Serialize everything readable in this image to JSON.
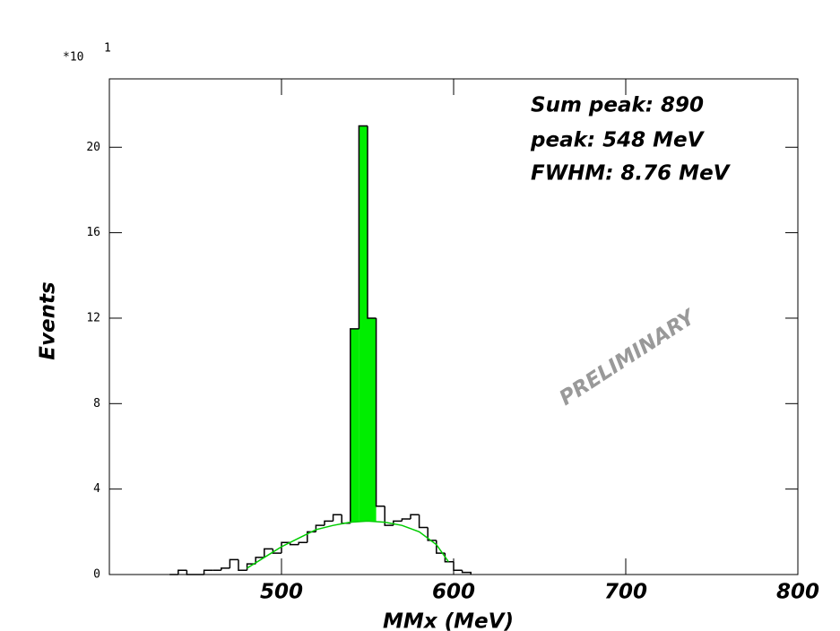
{
  "chart_data": {
    "type": "histogram",
    "x_label": "MMx (MeV)",
    "y_label": "Events",
    "y_multiplier": {
      "base": "*10",
      "exponent": "1"
    },
    "annotations": [
      "Sum peak: 890",
      "peak: 548 MeV",
      "FWHM: 8.76 MeV"
    ],
    "watermark": "PRELIMINARY",
    "bins": [
      435,
      440,
      445,
      450,
      455,
      460,
      465,
      470,
      475,
      480,
      485,
      490,
      495,
      500,
      505,
      510,
      515,
      520,
      525,
      530,
      535,
      540,
      545,
      550,
      555,
      560,
      565,
      570,
      575,
      580,
      585,
      590,
      595,
      600,
      605,
      610
    ],
    "values": [
      0,
      0.2,
      0,
      0,
      0.2,
      0.2,
      0.3,
      0.7,
      0.2,
      0.5,
      0.8,
      1.2,
      1.0,
      1.5,
      1.4,
      1.5,
      2.0,
      2.3,
      2.5,
      2.8,
      2.4,
      11.5,
      21,
      12,
      3.2,
      2.3,
      2.5,
      2.6,
      2.8,
      2.2,
      1.6,
      1.0,
      0.6,
      0.2,
      0.1
    ],
    "color": "#000000",
    "signal_range": [
      540,
      555
    ],
    "signal_color": "#00ee00",
    "fit": {
      "color": "#00cc00",
      "x": [
        480,
        490,
        500,
        510,
        520,
        530,
        540,
        550,
        560,
        570,
        580,
        590,
        597
      ],
      "y": [
        0.3,
        0.8,
        1.3,
        1.7,
        2.1,
        2.3,
        2.45,
        2.5,
        2.45,
        2.3,
        2.0,
        1.4,
        0.6
      ]
    },
    "xlim": [
      400,
      800
    ],
    "xticks": [
      500,
      600,
      700,
      800
    ],
    "ylim": [
      0,
      23.2
    ],
    "yticks": [
      0,
      4,
      8,
      12,
      16,
      20
    ]
  }
}
